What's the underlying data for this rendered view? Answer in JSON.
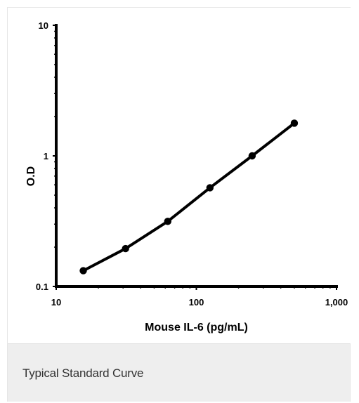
{
  "chart_data": {
    "type": "line",
    "title": "",
    "xlabel": "Mouse IL-6 (pg/mL)",
    "ylabel": "O.D",
    "x_scale": "log",
    "y_scale": "log",
    "xlim": [
      10,
      1000
    ],
    "ylim": [
      0.1,
      10
    ],
    "x_ticks": [
      10,
      100,
      1000
    ],
    "x_tick_labels": [
      "10",
      "100",
      "1,000"
    ],
    "y_ticks": [
      0.1,
      1,
      10
    ],
    "y_tick_labels": [
      "0.1",
      "1",
      "10"
    ],
    "grid": false,
    "legend": "none",
    "series": [
      {
        "x": [
          15.6,
          31.25,
          62.5,
          125,
          250,
          500
        ],
        "y": [
          0.132,
          0.195,
          0.315,
          0.57,
          1.0,
          1.78
        ]
      }
    ],
    "colors": {
      "line": "#000000",
      "marker": "#000000",
      "axis": "#000000"
    }
  },
  "caption": {
    "text": "Typical Standard Curve"
  }
}
